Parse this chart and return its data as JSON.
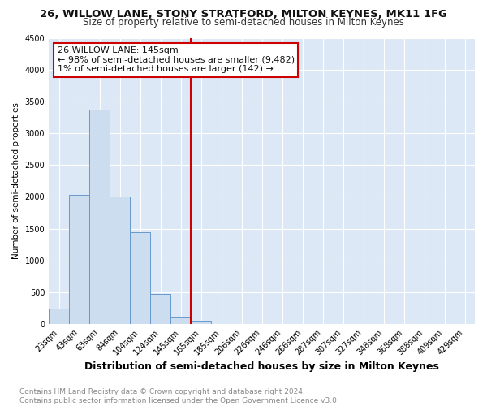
{
  "title1": "26, WILLOW LANE, STONY STRATFORD, MILTON KEYNES, MK11 1FG",
  "title2": "Size of property relative to semi-detached houses in Milton Keynes",
  "xlabel": "Distribution of semi-detached houses by size in Milton Keynes",
  "ylabel": "Number of semi-detached properties",
  "footer": "Contains HM Land Registry data © Crown copyright and database right 2024.\nContains public sector information licensed under the Open Government Licence v3.0.",
  "bin_labels": [
    "23sqm",
    "43sqm",
    "63sqm",
    "84sqm",
    "104sqm",
    "124sqm",
    "145sqm",
    "165sqm",
    "185sqm",
    "206sqm",
    "226sqm",
    "246sqm",
    "266sqm",
    "287sqm",
    "307sqm",
    "327sqm",
    "348sqm",
    "368sqm",
    "388sqm",
    "409sqm",
    "429sqm"
  ],
  "bar_values": [
    250,
    2030,
    3370,
    2000,
    1450,
    480,
    100,
    50,
    0,
    0,
    0,
    0,
    0,
    0,
    0,
    0,
    0,
    0,
    0,
    0,
    0
  ],
  "bar_color": "#ccddf0",
  "bar_edge_color": "#6699cc",
  "red_line_index": 6,
  "red_line_label": "26 WILLOW LANE: 145sqm",
  "annotation_line1": "← 98% of semi-detached houses are smaller (9,482)",
  "annotation_line2": "1% of semi-detached houses are larger (142) →",
  "ylim": [
    0,
    4500
  ],
  "yticks": [
    0,
    500,
    1000,
    1500,
    2000,
    2500,
    3000,
    3500,
    4000,
    4500
  ],
  "plot_bg_color": "#dce8f5",
  "title1_fontsize": 9.5,
  "title2_fontsize": 8.5,
  "xlabel_fontsize": 9,
  "ylabel_fontsize": 7.5,
  "footer_fontsize": 6.5,
  "tick_fontsize": 7,
  "annot_fontsize": 8
}
